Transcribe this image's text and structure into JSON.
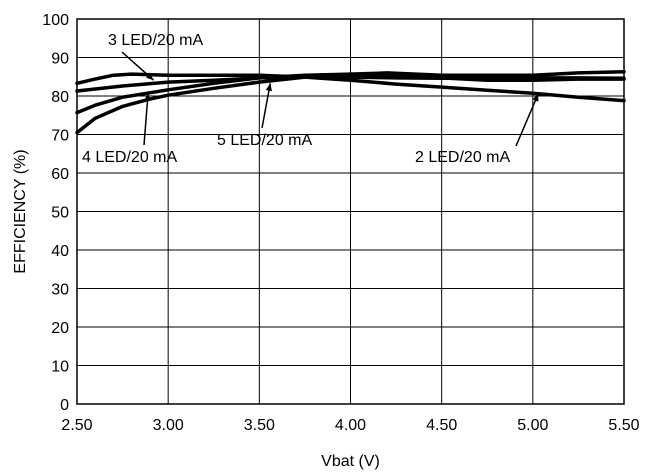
{
  "chart_data": {
    "type": "line",
    "title": "",
    "xlabel": "Vbat (V)",
    "ylabel": "EFFICIENCY (%)",
    "xlim": [
      2.5,
      5.5
    ],
    "ylim": [
      0,
      100
    ],
    "x_ticks": [
      {
        "value": 2.5,
        "label": "2.50"
      },
      {
        "value": 3.0,
        "label": "3.00"
      },
      {
        "value": 3.5,
        "label": "3.50"
      },
      {
        "value": 4.0,
        "label": "4.00"
      },
      {
        "value": 4.5,
        "label": "4.50"
      },
      {
        "value": 5.0,
        "label": "5.00"
      },
      {
        "value": 5.5,
        "label": "5.50"
      }
    ],
    "y_ticks": [
      {
        "value": 0,
        "label": "0"
      },
      {
        "value": 10,
        "label": "10"
      },
      {
        "value": 20,
        "label": "20"
      },
      {
        "value": 30,
        "label": "30"
      },
      {
        "value": 40,
        "label": "40"
      },
      {
        "value": 50,
        "label": "50"
      },
      {
        "value": 60,
        "label": "60"
      },
      {
        "value": 70,
        "label": "70"
      },
      {
        "value": 80,
        "label": "80"
      },
      {
        "value": 90,
        "label": "90"
      },
      {
        "value": 100,
        "label": "100"
      }
    ],
    "grid": true,
    "legend": "none",
    "line_color": "#000000",
    "series": [
      {
        "name": "2 LED/20 mA",
        "points": [
          [
            2.5,
            83.3
          ],
          [
            2.6,
            84.4
          ],
          [
            2.7,
            85.4
          ],
          [
            2.8,
            85.7
          ],
          [
            3.0,
            85.4
          ],
          [
            3.25,
            85.4
          ],
          [
            3.5,
            85.4
          ],
          [
            3.75,
            84.9
          ],
          [
            4.0,
            84.1
          ],
          [
            4.25,
            83.1
          ],
          [
            4.5,
            82.3
          ],
          [
            4.75,
            81.5
          ],
          [
            5.0,
            80.7
          ],
          [
            5.25,
            79.7
          ],
          [
            5.5,
            78.8
          ]
        ],
        "label_anchor": [
          5.03,
          80.6
        ]
      },
      {
        "name": "3 LED/20 mA",
        "points": [
          [
            2.5,
            81.3
          ],
          [
            2.75,
            82.6
          ],
          [
            3.0,
            83.6
          ],
          [
            3.25,
            84.1
          ],
          [
            3.5,
            84.7
          ],
          [
            3.75,
            84.9
          ],
          [
            4.0,
            84.9
          ],
          [
            4.25,
            84.7
          ],
          [
            4.5,
            84.6
          ],
          [
            4.75,
            84.6
          ],
          [
            5.0,
            84.7
          ],
          [
            5.25,
            84.7
          ],
          [
            5.5,
            84.6
          ]
        ],
        "label_anchor": [
          2.92,
          84.1
        ]
      },
      {
        "name": "4 LED/20 mA",
        "points": [
          [
            2.5,
            75.7
          ],
          [
            2.6,
            77.6
          ],
          [
            2.75,
            79.7
          ],
          [
            3.0,
            81.6
          ],
          [
            3.25,
            83.3
          ],
          [
            3.5,
            84.7
          ],
          [
            3.75,
            85.4
          ],
          [
            4.0,
            85.7
          ],
          [
            4.25,
            85.2
          ],
          [
            4.5,
            84.7
          ],
          [
            4.75,
            84.1
          ],
          [
            5.0,
            84.1
          ],
          [
            5.25,
            84.4
          ],
          [
            5.5,
            84.4
          ]
        ],
        "label_anchor": [
          2.89,
          80.8
        ]
      },
      {
        "name": "5 LED/20 mA",
        "points": [
          [
            2.5,
            70.5
          ],
          [
            2.6,
            74.2
          ],
          [
            2.75,
            77.3
          ],
          [
            2.9,
            79.2
          ],
          [
            3.0,
            80.2
          ],
          [
            3.25,
            82.0
          ],
          [
            3.5,
            83.6
          ],
          [
            3.75,
            84.9
          ],
          [
            4.0,
            85.7
          ],
          [
            4.2,
            86.0
          ],
          [
            4.5,
            85.4
          ],
          [
            5.0,
            85.4
          ],
          [
            5.25,
            86.0
          ],
          [
            5.5,
            86.3
          ]
        ],
        "label_anchor": [
          3.56,
          83.3
        ]
      }
    ],
    "annotations": [
      {
        "text": "3 LED/20 mA",
        "series": "3 LED/20 mA"
      },
      {
        "text": "4 LED/20 mA",
        "series": "4 LED/20 mA"
      },
      {
        "text": "5 LED/20 mA",
        "series": "5 LED/20 mA"
      },
      {
        "text": "2 LED/20 mA",
        "series": "2 LED/20 mA"
      }
    ]
  }
}
